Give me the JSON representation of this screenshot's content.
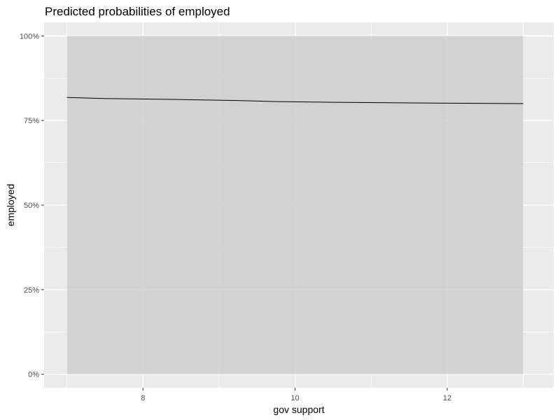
{
  "chart_data": {
    "type": "line",
    "title": "Predicted probabilities of employed",
    "xlabel": "gov support",
    "ylabel": "employed",
    "xlim": [
      6.7,
      13.4
    ],
    "ylim": [
      -0.04,
      1.04
    ],
    "x_ticks": [
      8,
      10,
      12
    ],
    "x_tick_labels": [
      "8",
      "10",
      "12"
    ],
    "y_ticks": [
      0,
      0.25,
      0.5,
      0.75,
      1.0
    ],
    "y_tick_labels": [
      "0%",
      "25%",
      "50%",
      "75%",
      "100%"
    ],
    "grid": true,
    "legend": "none",
    "series": [
      {
        "x": [
          7,
          7.5,
          8.5,
          9.25,
          9.75,
          10.5,
          11.5,
          13
        ],
        "y": [
          0.818,
          0.815,
          0.812,
          0.809,
          0.806,
          0.804,
          0.802,
          0.8
        ],
        "ci_lower": [
          0.0,
          0.0,
          0.0,
          0.0,
          0.0,
          0.0,
          0.0,
          0.0
        ],
        "ci_upper": [
          1.0,
          1.0,
          1.0,
          1.0,
          1.0,
          1.0,
          1.0,
          1.0
        ]
      }
    ],
    "colors": {
      "panel": "#ebebeb",
      "ribbon": "#cccccc",
      "grid_major": "#ffffff",
      "line": "#000000"
    }
  }
}
